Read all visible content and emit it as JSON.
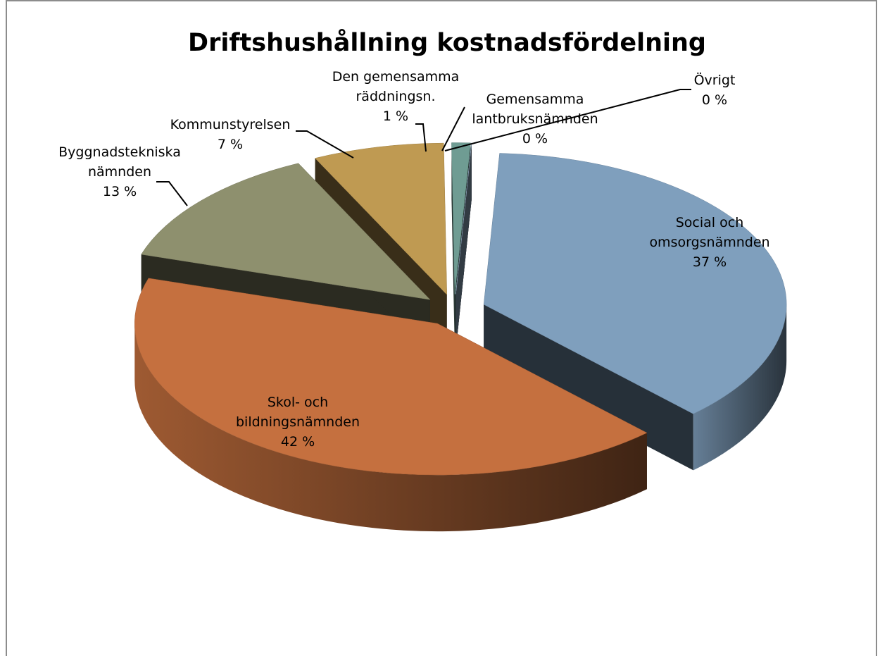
{
  "chart_data": {
    "type": "pie",
    "three_d": true,
    "exploded": true,
    "title": "Driftshushållning kostnadsfördelning",
    "categories": [
      "Social och omsorgsnämnden",
      "Skol- och bildningsnämnden",
      "Byggnadstekniska nämnden",
      "Kommunstyrelsen",
      "Den gemensamma räddningsn.",
      "Gemensamma lantbruksnämnden",
      "Övrigt"
    ],
    "values": [
      37,
      42,
      13,
      7,
      1,
      0,
      0
    ],
    "value_labels": [
      "37 %",
      "42 %",
      "13 %",
      "7 %",
      "1 %",
      "0 %",
      "0 %"
    ],
    "colors": [
      "#7f9fbd",
      "#c5703f",
      "#8e906e",
      "#bf9a52",
      "#6f9c93",
      "#7a6e8a",
      "#a8c6e0"
    ]
  }
}
